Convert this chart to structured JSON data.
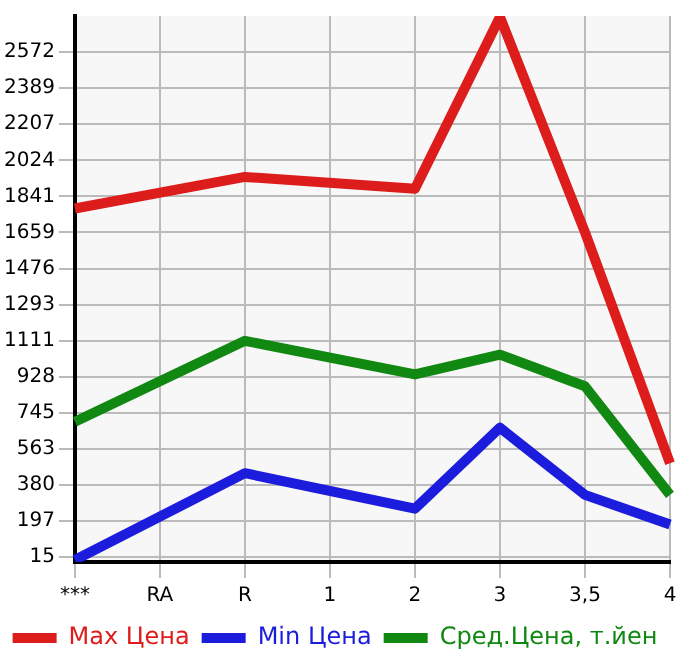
{
  "chart_data": {
    "type": "line",
    "categories": [
      "***",
      "RA",
      "R",
      "1",
      "2",
      "3",
      "3,5",
      "4"
    ],
    "series": [
      {
        "name": "Max Цена",
        "color": "#dd1c1c",
        "values": [
          1780,
          null,
          1940,
          null,
          1880,
          2750,
          1660,
          490
        ]
      },
      {
        "name": "Min Цена",
        "color": "#1c1cdd",
        "values": [
          0,
          null,
          440,
          null,
          260,
          670,
          330,
          180
        ]
      },
      {
        "name": "Сред.Цена, т.йен",
        "color": "#118811",
        "values": [
          700,
          null,
          1110,
          null,
          940,
          1040,
          880,
          330
        ]
      }
    ],
    "ylim": [
      -10,
      2755
    ],
    "yticks": [
      15,
      197,
      380,
      563,
      745,
      928,
      1111,
      1293,
      1476,
      1659,
      1841,
      2024,
      2207,
      2389,
      2572
    ],
    "grid": true,
    "legend": "bottom",
    "marker": "none",
    "line_style": "solid"
  }
}
